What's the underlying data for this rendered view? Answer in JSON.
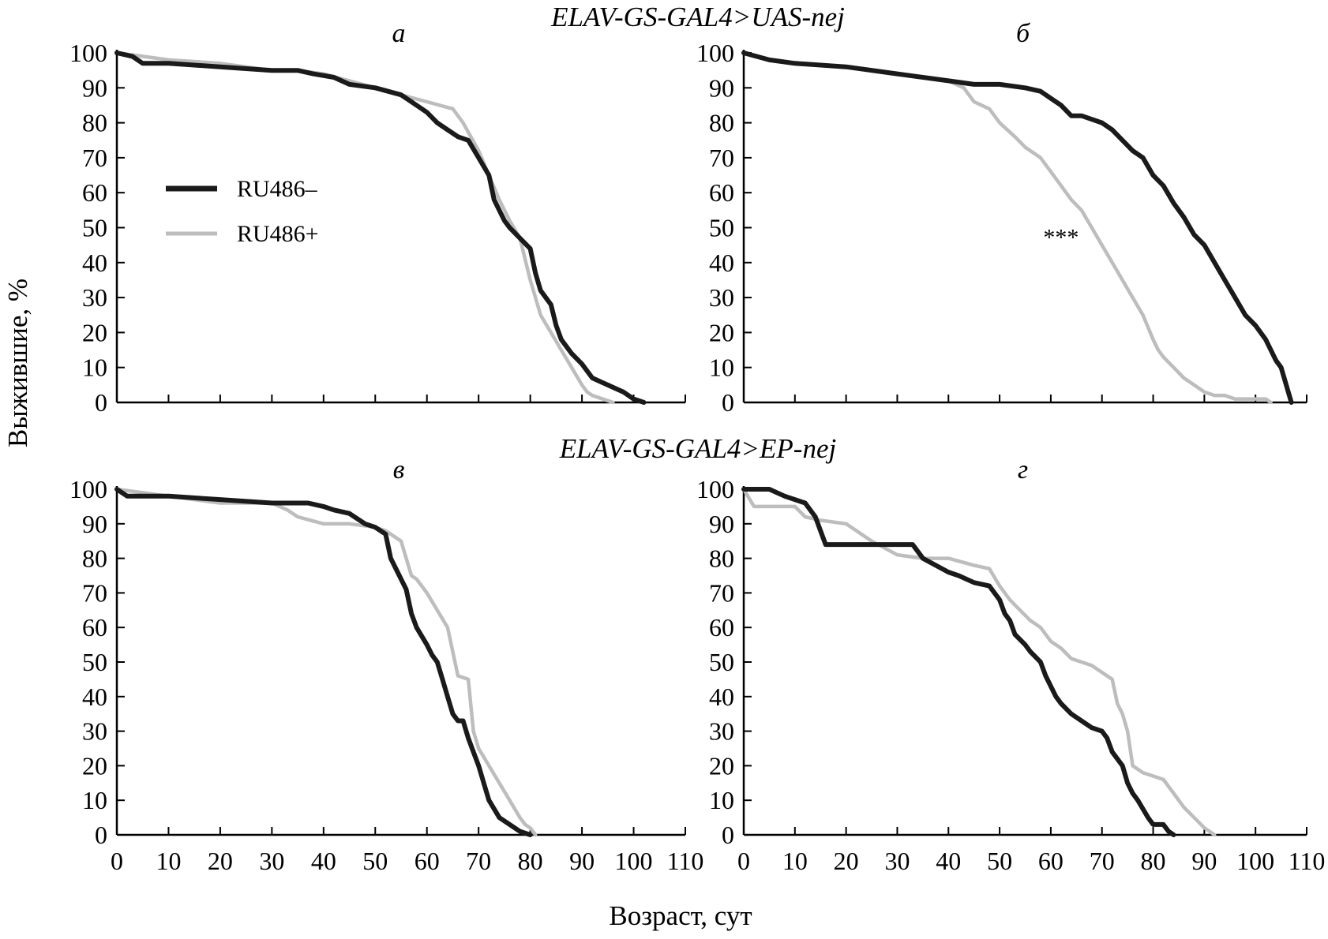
{
  "figure": {
    "xlabel": "Возраст, сут",
    "ylabel": "Выжившие, %",
    "group_titles": [
      "ELAV-GS-GAL4>UAS-nej",
      "ELAV-GS-GAL4>EP-nej"
    ],
    "legend": {
      "placement": "panel-a-left",
      "entries": [
        "RU486–",
        "RU486+"
      ]
    },
    "colors": {
      "RU486-": "#1a1a1a",
      "RU486+": "#bdbdbd"
    }
  },
  "chart_data": [
    {
      "type": "line",
      "panel_label": "а",
      "xlim": [
        0,
        110
      ],
      "ylim": [
        0,
        100
      ],
      "xticks": [
        "0",
        "10",
        "20",
        "30",
        "40",
        "50",
        "60",
        "70",
        "80",
        "90",
        "100",
        "110"
      ],
      "yticks": [
        "0",
        "10",
        "20",
        "30",
        "40",
        "50",
        "60",
        "70",
        "80",
        "90",
        "100"
      ],
      "annotation": "",
      "series": [
        {
          "name": "RU486–",
          "color": "#1a1a1a",
          "x": [
            0,
            3,
            5,
            10,
            20,
            30,
            35,
            38,
            42,
            45,
            50,
            55,
            57,
            60,
            62,
            64,
            66,
            68,
            70,
            72,
            73,
            75,
            76,
            78,
            80,
            81,
            82,
            84,
            85,
            86,
            88,
            90,
            92,
            95,
            98,
            100,
            102
          ],
          "y": [
            100,
            99,
            97,
            97,
            96,
            95,
            95,
            94,
            93,
            91,
            90,
            88,
            86,
            83,
            80,
            78,
            76,
            75,
            70,
            65,
            58,
            52,
            50,
            47,
            44,
            37,
            32,
            28,
            22,
            18,
            14,
            11,
            7,
            5,
            3,
            1,
            0
          ]
        },
        {
          "name": "RU486+",
          "color": "#bdbdbd",
          "x": [
            0,
            5,
            10,
            20,
            30,
            35,
            40,
            45,
            50,
            55,
            60,
            65,
            67,
            70,
            72,
            74,
            76,
            78,
            80,
            81,
            82,
            84,
            86,
            88,
            90,
            91,
            92,
            94,
            96
          ],
          "y": [
            100,
            99,
            98,
            97,
            95,
            95,
            94,
            92,
            90,
            88,
            86,
            84,
            80,
            72,
            65,
            58,
            52,
            47,
            35,
            30,
            25,
            20,
            15,
            10,
            5,
            3,
            2,
            1,
            0
          ]
        }
      ]
    },
    {
      "type": "line",
      "panel_label": "б",
      "xlim": [
        0,
        110
      ],
      "ylim": [
        0,
        100
      ],
      "xticks": [
        "0",
        "10",
        "20",
        "30",
        "40",
        "50",
        "60",
        "70",
        "80",
        "90",
        "100",
        "110"
      ],
      "yticks": [
        "0",
        "10",
        "20",
        "30",
        "40",
        "50",
        "60",
        "70",
        "80",
        "90",
        "100"
      ],
      "annotation": "***",
      "series": [
        {
          "name": "RU486–",
          "color": "#1a1a1a",
          "x": [
            0,
            5,
            10,
            20,
            30,
            40,
            45,
            50,
            55,
            58,
            60,
            62,
            64,
            66,
            68,
            70,
            72,
            74,
            76,
            78,
            80,
            82,
            84,
            86,
            88,
            90,
            92,
            94,
            96,
            98,
            100,
            102,
            104,
            105,
            106,
            107
          ],
          "y": [
            100,
            98,
            97,
            96,
            94,
            92,
            91,
            91,
            90,
            89,
            87,
            85,
            82,
            82,
            81,
            80,
            78,
            75,
            72,
            70,
            65,
            62,
            57,
            53,
            48,
            45,
            40,
            35,
            30,
            25,
            22,
            18,
            12,
            10,
            5,
            0
          ]
        },
        {
          "name": "RU486+",
          "color": "#bdbdbd",
          "x": [
            0,
            5,
            10,
            20,
            30,
            40,
            43,
            45,
            48,
            50,
            53,
            55,
            58,
            60,
            62,
            64,
            66,
            68,
            70,
            72,
            74,
            76,
            78,
            80,
            81,
            82,
            84,
            86,
            88,
            90,
            92,
            94,
            96,
            98,
            100,
            102,
            103
          ],
          "y": [
            100,
            98,
            97,
            96,
            94,
            92,
            90,
            86,
            84,
            80,
            76,
            73,
            70,
            66,
            62,
            58,
            55,
            50,
            45,
            40,
            35,
            30,
            25,
            18,
            15,
            13,
            10,
            7,
            5,
            3,
            2,
            2,
            1,
            1,
            1,
            1,
            0
          ]
        }
      ]
    },
    {
      "type": "line",
      "panel_label": "в",
      "xlim": [
        0,
        110
      ],
      "ylim": [
        0,
        100
      ],
      "xticks": [
        "0",
        "10",
        "20",
        "30",
        "40",
        "50",
        "60",
        "70",
        "80",
        "90",
        "100",
        "110"
      ],
      "yticks": [
        "0",
        "10",
        "20",
        "30",
        "40",
        "50",
        "60",
        "70",
        "80",
        "90",
        "100"
      ],
      "annotation": "",
      "series": [
        {
          "name": "RU486–",
          "color": "#1a1a1a",
          "x": [
            0,
            2,
            10,
            20,
            30,
            37,
            40,
            42,
            45,
            48,
            50,
            52,
            53,
            55,
            56,
            57,
            58,
            60,
            61,
            62,
            63,
            64,
            65,
            66,
            67,
            68,
            69,
            70,
            71,
            72,
            74,
            76,
            78,
            80
          ],
          "y": [
            100,
            98,
            98,
            97,
            96,
            96,
            95,
            94,
            93,
            90,
            89,
            87,
            80,
            74,
            71,
            64,
            60,
            55,
            52,
            50,
            45,
            40,
            35,
            33,
            33,
            28,
            24,
            20,
            15,
            10,
            5,
            3,
            1,
            0
          ]
        },
        {
          "name": "RU486+",
          "color": "#bdbdbd",
          "x": [
            0,
            5,
            10,
            20,
            30,
            33,
            35,
            40,
            45,
            50,
            52,
            55,
            56,
            57,
            58,
            60,
            62,
            64,
            66,
            68,
            69,
            70,
            72,
            74,
            76,
            78,
            79,
            80,
            81
          ],
          "y": [
            100,
            99,
            98,
            96,
            96,
            94,
            92,
            90,
            90,
            89,
            88,
            85,
            80,
            75,
            74,
            70,
            65,
            60,
            46,
            45,
            30,
            25,
            20,
            15,
            10,
            5,
            3,
            2,
            0
          ]
        }
      ]
    },
    {
      "type": "line",
      "panel_label": "г",
      "xlim": [
        0,
        110
      ],
      "ylim": [
        0,
        100
      ],
      "xticks": [
        "0",
        "10",
        "20",
        "30",
        "40",
        "50",
        "60",
        "70",
        "80",
        "90",
        "100",
        "110"
      ],
      "yticks": [
        "0",
        "10",
        "20",
        "30",
        "40",
        "50",
        "60",
        "70",
        "80",
        "90",
        "100"
      ],
      "annotation": "",
      "series": [
        {
          "name": "RU486–",
          "color": "#1a1a1a",
          "x": [
            0,
            5,
            8,
            12,
            14,
            15,
            16,
            20,
            30,
            33,
            35,
            40,
            42,
            45,
            48,
            50,
            51,
            52,
            53,
            55,
            56,
            58,
            59,
            60,
            61,
            62,
            64,
            66,
            68,
            70,
            71,
            72,
            74,
            75,
            76,
            77,
            79,
            80,
            82,
            83,
            84
          ],
          "y": [
            100,
            100,
            98,
            96,
            92,
            88,
            84,
            84,
            84,
            84,
            80,
            76,
            75,
            73,
            72,
            68,
            64,
            62,
            58,
            55,
            53,
            50,
            46,
            43,
            40,
            38,
            35,
            33,
            31,
            30,
            28,
            24,
            20,
            15,
            12,
            10,
            5,
            3,
            3,
            1,
            0
          ]
        },
        {
          "name": "RU486+",
          "color": "#bdbdbd",
          "x": [
            0,
            2,
            5,
            10,
            12,
            15,
            20,
            25,
            30,
            35,
            40,
            45,
            48,
            50,
            52,
            54,
            56,
            58,
            60,
            62,
            64,
            66,
            68,
            70,
            72,
            73,
            74,
            75,
            76,
            78,
            80,
            82,
            84,
            86,
            88,
            90,
            92
          ],
          "y": [
            100,
            95,
            95,
            95,
            92,
            91,
            90,
            85,
            81,
            80,
            80,
            78,
            77,
            72,
            68,
            65,
            62,
            60,
            56,
            54,
            51,
            50,
            49,
            47,
            45,
            38,
            35,
            30,
            20,
            18,
            17,
            16,
            12,
            8,
            5,
            2,
            0
          ]
        }
      ]
    }
  ]
}
